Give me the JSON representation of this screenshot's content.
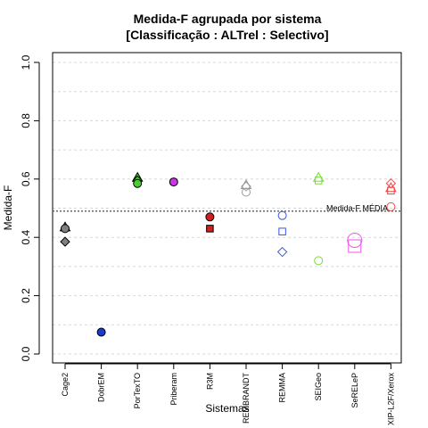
{
  "chart_data": {
    "type": "scatter",
    "title": "Medida-F agrupada por sistema",
    "subtitle": "[Classificação : ALTrel : Selectivo]",
    "xlabel": "Sistemas",
    "ylabel": "Medida-F",
    "ylim": [
      0.0,
      1.0
    ],
    "yticks": [
      "0.0",
      "0.2",
      "0.4",
      "0.6",
      "0.8",
      "1.0"
    ],
    "grid": true,
    "categories": [
      "Cage2",
      "DobrEM",
      "PorTexTO",
      "Priberam",
      "R3M",
      "REMBRANDT",
      "REMMA",
      "SEIGeo",
      "SeRELeP",
      "XIP-L2F/Xerox"
    ],
    "reference_line": {
      "label": "Medida-F MÉDIA",
      "value": 0.49,
      "color": "#666666"
    },
    "points": [
      {
        "category": "Cage2",
        "y": 0.435,
        "shape": "triangle",
        "filled": true,
        "color": "#808080"
      },
      {
        "category": "Cage2",
        "y": 0.43,
        "shape": "circle",
        "filled": true,
        "color": "#808080"
      },
      {
        "category": "Cage2",
        "y": 0.385,
        "shape": "diamond",
        "filled": true,
        "color": "#808080"
      },
      {
        "category": "DobrEM",
        "y": 0.075,
        "shape": "circle",
        "filled": true,
        "color": "#1a3ccc"
      },
      {
        "category": "PorTexTO",
        "y": 0.605,
        "shape": "triangle",
        "filled": true,
        "color": "#4ccc33"
      },
      {
        "category": "PorTexTO",
        "y": 0.595,
        "shape": "diamond",
        "filled": true,
        "color": "#4ccc33"
      },
      {
        "category": "PorTexTO",
        "y": 0.585,
        "shape": "circle",
        "filled": true,
        "color": "#4ccc33"
      },
      {
        "category": "Priberam",
        "y": 0.59,
        "shape": "circle",
        "filled": true,
        "color": "#cc33e6"
      },
      {
        "category": "R3M",
        "y": 0.47,
        "shape": "circle",
        "filled": true,
        "color": "#cc2222"
      },
      {
        "category": "R3M",
        "y": 0.43,
        "shape": "square",
        "filled": true,
        "color": "#cc2222"
      },
      {
        "category": "REMBRANDT",
        "y": 0.58,
        "shape": "triangle",
        "filled": false,
        "color": "#999999"
      },
      {
        "category": "REMBRANDT",
        "y": 0.575,
        "shape": "diamond",
        "filled": false,
        "color": "#999999"
      },
      {
        "category": "REMBRANDT",
        "y": 0.555,
        "shape": "circle",
        "filled": false,
        "color": "#999999"
      },
      {
        "category": "REMMA",
        "y": 0.475,
        "shape": "circle",
        "filled": false,
        "color": "#3355ee"
      },
      {
        "category": "REMMA",
        "y": 0.42,
        "shape": "square",
        "filled": false,
        "color": "#3355ee"
      },
      {
        "category": "REMMA",
        "y": 0.35,
        "shape": "diamond",
        "filled": false,
        "color": "#3355ee"
      },
      {
        "category": "SEIGeo",
        "y": 0.605,
        "shape": "triangle",
        "filled": false,
        "color": "#77dd33"
      },
      {
        "category": "SEIGeo",
        "y": 0.595,
        "shape": "square",
        "filled": false,
        "color": "#77dd33"
      },
      {
        "category": "SEIGeo",
        "y": 0.32,
        "shape": "circle",
        "filled": false,
        "color": "#77dd33"
      },
      {
        "category": "SeRELeP",
        "y": 0.39,
        "shape": "circle",
        "filled": false,
        "color": "#ee55ee",
        "size": "large"
      },
      {
        "category": "SeRELeP",
        "y": 0.37,
        "shape": "square",
        "filled": false,
        "color": "#ee55ee",
        "size": "large"
      },
      {
        "category": "XIP-L2F/Xerox",
        "y": 0.585,
        "shape": "diamond",
        "filled": false,
        "color": "#ee4444"
      },
      {
        "category": "XIP-L2F/Xerox",
        "y": 0.57,
        "shape": "triangle",
        "filled": false,
        "color": "#ee4444"
      },
      {
        "category": "XIP-L2F/Xerox",
        "y": 0.56,
        "shape": "square",
        "filled": false,
        "color": "#ee4444"
      },
      {
        "category": "XIP-L2F/Xerox",
        "y": 0.505,
        "shape": "circle",
        "filled": false,
        "color": "#ee4444"
      }
    ]
  }
}
